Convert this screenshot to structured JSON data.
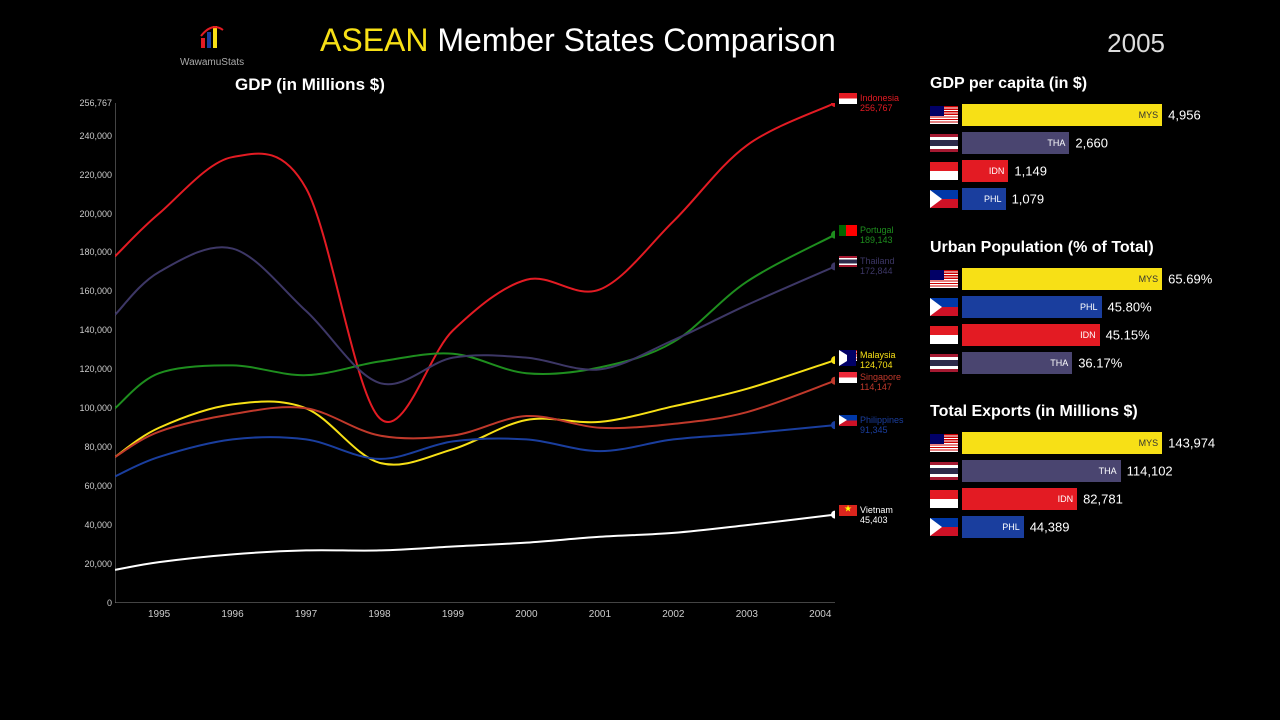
{
  "header": {
    "logo_text": "WawamuStats",
    "title_highlight": "ASEAN",
    "title_rest": " Member States Comparison",
    "year": "2005"
  },
  "main_chart": {
    "title": "GDP (in Millions $)",
    "type": "line",
    "background_color": "#000000",
    "ylim": [
      0,
      256767
    ],
    "xlim": [
      1994.4,
      2004.2
    ],
    "yticks": [
      {
        "v": 0,
        "label": "0"
      },
      {
        "v": 20000,
        "label": "20,000"
      },
      {
        "v": 40000,
        "label": "40,000"
      },
      {
        "v": 60000,
        "label": "60,000"
      },
      {
        "v": 80000,
        "label": "80,000"
      },
      {
        "v": 100000,
        "label": "100,000"
      },
      {
        "v": 120000,
        "label": "120,000"
      },
      {
        "v": 140000,
        "label": "140,000"
      },
      {
        "v": 160000,
        "label": "160,000"
      },
      {
        "v": 180000,
        "label": "180,000"
      },
      {
        "v": 200000,
        "label": "200,000"
      },
      {
        "v": 220000,
        "label": "220,000"
      },
      {
        "v": 240000,
        "label": "240,000"
      },
      {
        "v": 256767,
        "label": "256,767"
      }
    ],
    "xticks": [
      1995,
      1996,
      1997,
      1998,
      1999,
      2000,
      2001,
      2002,
      2003,
      2004
    ],
    "series": [
      {
        "name": "Indonesia",
        "code": "IDN",
        "color": "#e31b23",
        "flag": "idn",
        "value_label": "256,767",
        "points": [
          [
            1994.4,
            178000
          ],
          [
            1995,
            200000
          ],
          [
            1996,
            229000
          ],
          [
            1997,
            213000
          ],
          [
            1998,
            95000
          ],
          [
            1999,
            140000
          ],
          [
            2000,
            166000
          ],
          [
            2001,
            161000
          ],
          [
            2002,
            196000
          ],
          [
            2003,
            235000
          ],
          [
            2004.2,
            256767
          ]
        ]
      },
      {
        "name": "Portugal",
        "code": "PRT",
        "color": "#1e8e1e",
        "flag": "prt",
        "value_label": "189,143",
        "points": [
          [
            1994.4,
            100000
          ],
          [
            1995,
            118000
          ],
          [
            1996,
            122000
          ],
          [
            1997,
            117000
          ],
          [
            1998,
            124000
          ],
          [
            1999,
            128000
          ],
          [
            2000,
            118000
          ],
          [
            2001,
            121000
          ],
          [
            2002,
            134000
          ],
          [
            2003,
            165000
          ],
          [
            2004.2,
            189143
          ]
        ]
      },
      {
        "name": "Thailand",
        "code": "THA",
        "color": "#3d3766",
        "flag": "tha",
        "value_label": "172,844",
        "points": [
          [
            1994.4,
            148000
          ],
          [
            1995,
            170000
          ],
          [
            1996,
            182000
          ],
          [
            1997,
            150000
          ],
          [
            1998,
            113000
          ],
          [
            1999,
            126000
          ],
          [
            2000,
            126000
          ],
          [
            2001,
            120000
          ],
          [
            2002,
            135000
          ],
          [
            2003,
            153000
          ],
          [
            2004.2,
            172844
          ]
        ]
      },
      {
        "name": "Malaysia",
        "code": "MYS",
        "color": "#f7e016",
        "flag": "mys",
        "value_label": "124,704",
        "points": [
          [
            1994.4,
            75000
          ],
          [
            1995,
            90000
          ],
          [
            1996,
            102000
          ],
          [
            1997,
            100000
          ],
          [
            1998,
            72000
          ],
          [
            1999,
            79000
          ],
          [
            2000,
            94000
          ],
          [
            2001,
            93000
          ],
          [
            2002,
            101000
          ],
          [
            2003,
            110000
          ],
          [
            2004.2,
            124704
          ]
        ]
      },
      {
        "name": "Singapore",
        "code": "SGP",
        "color": "#c0392b",
        "flag": "sgp",
        "value_label": "114,147",
        "points": [
          [
            1994.4,
            75000
          ],
          [
            1995,
            88000
          ],
          [
            1996,
            97000
          ],
          [
            1997,
            100000
          ],
          [
            1998,
            86000
          ],
          [
            1999,
            86000
          ],
          [
            2000,
            96000
          ],
          [
            2001,
            90000
          ],
          [
            2002,
            92000
          ],
          [
            2003,
            98000
          ],
          [
            2004.2,
            114147
          ]
        ]
      },
      {
        "name": "Philippines",
        "code": "PHL",
        "color": "#1a3e9e",
        "flag": "phl",
        "value_label": "91,345",
        "points": [
          [
            1994.4,
            65000
          ],
          [
            1995,
            75000
          ],
          [
            1996,
            84000
          ],
          [
            1997,
            84000
          ],
          [
            1998,
            74000
          ],
          [
            1999,
            83000
          ],
          [
            2000,
            84000
          ],
          [
            2001,
            78000
          ],
          [
            2002,
            84000
          ],
          [
            2003,
            87000
          ],
          [
            2004.2,
            91345
          ]
        ]
      },
      {
        "name": "Vietnam",
        "code": "VNM",
        "color": "#ffffff",
        "flag": "vnm",
        "value_label": "45,403",
        "points": [
          [
            1994.4,
            17000
          ],
          [
            1995,
            21000
          ],
          [
            1996,
            25000
          ],
          [
            1997,
            27000
          ],
          [
            1998,
            27000
          ],
          [
            1999,
            29000
          ],
          [
            2000,
            31000
          ],
          [
            2001,
            34000
          ],
          [
            2002,
            36000
          ],
          [
            2003,
            40000
          ],
          [
            2004.2,
            45403
          ]
        ]
      }
    ],
    "line_width": 2
  },
  "panels": [
    {
      "title": "GDP per capita (in $)",
      "max": 4956,
      "bars": [
        {
          "code": "MYS",
          "flag": "mys",
          "color": "#f7e016",
          "value": 4956,
          "label": "4,956"
        },
        {
          "code": "THA",
          "flag": "tha",
          "color": "#4a4570",
          "value": 2660,
          "label": "2,660"
        },
        {
          "code": "IDN",
          "flag": "idn",
          "color": "#e31b23",
          "value": 1149,
          "label": "1,149"
        },
        {
          "code": "PHL",
          "flag": "phl",
          "color": "#1a3e9e",
          "value": 1079,
          "label": "1,079"
        }
      ]
    },
    {
      "title": "Urban Population (% of Total)",
      "max": 65.69,
      "bars": [
        {
          "code": "MYS",
          "flag": "mys",
          "color": "#f7e016",
          "value": 65.69,
          "label": "65.69%"
        },
        {
          "code": "PHL",
          "flag": "phl",
          "color": "#1a3e9e",
          "value": 45.8,
          "label": "45.80%"
        },
        {
          "code": "IDN",
          "flag": "idn",
          "color": "#e31b23",
          "value": 45.15,
          "label": "45.15%"
        },
        {
          "code": "THA",
          "flag": "tha",
          "color": "#4a4570",
          "value": 36.17,
          "label": "36.17%"
        }
      ]
    },
    {
      "title": "Total Exports (in Millions $)",
      "max": 143974,
      "bars": [
        {
          "code": "MYS",
          "flag": "mys",
          "color": "#f7e016",
          "value": 143974,
          "label": "143,974"
        },
        {
          "code": "THA",
          "flag": "tha",
          "color": "#4a4570",
          "value": 114102,
          "label": "114,102"
        },
        {
          "code": "IDN",
          "flag": "idn",
          "color": "#e31b23",
          "value": 82781,
          "label": "82,781"
        },
        {
          "code": "PHL",
          "flag": "phl",
          "color": "#1a3e9e",
          "value": 44389,
          "label": "44,389"
        }
      ]
    }
  ]
}
